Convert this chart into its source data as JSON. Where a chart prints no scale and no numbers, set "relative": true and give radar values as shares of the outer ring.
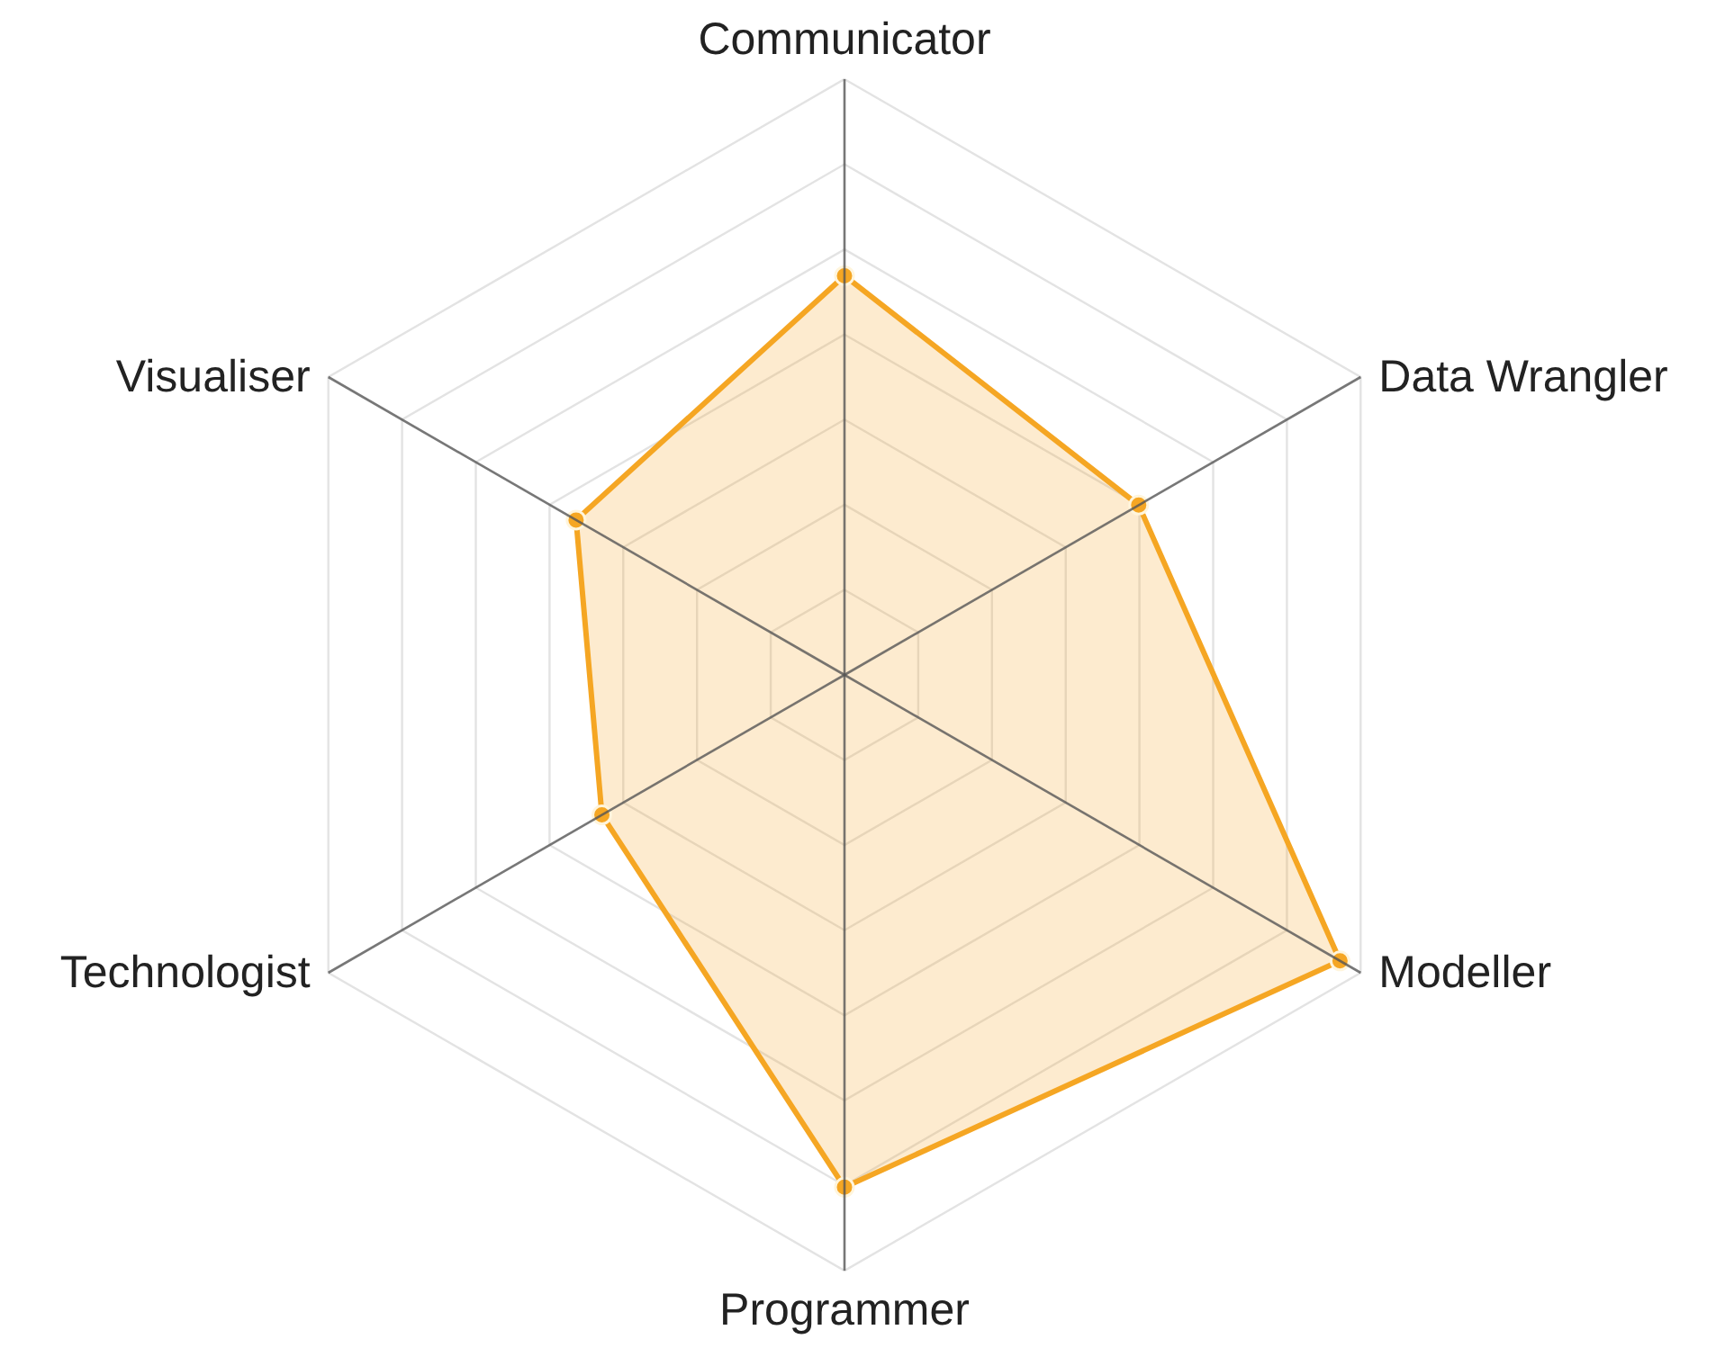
{
  "chart_data": {
    "type": "radar",
    "relative": true,
    "categories": [
      "Communicator",
      "Data Wrangler",
      "Modeller",
      "Programmer",
      "Technologist",
      "Visualiser"
    ],
    "grid": true,
    "marker": "circle",
    "series": [
      {
        "color": "#f5a623",
        "values": [
          0.67,
          0.57,
          0.96,
          0.86,
          0.47,
          0.52
        ]
      }
    ]
  }
}
